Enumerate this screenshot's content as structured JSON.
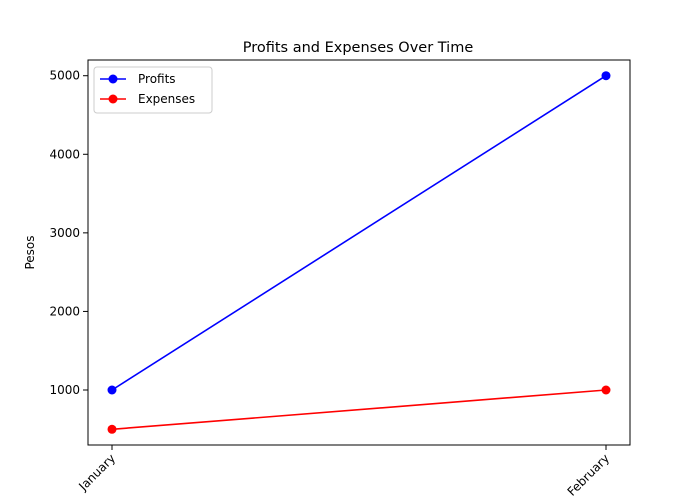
{
  "chart_data": {
    "type": "line",
    "title": "Profits and Expenses Over Time",
    "xlabel": "",
    "ylabel": "Pesos",
    "categories": [
      "January",
      "February"
    ],
    "series": [
      {
        "name": "Profits",
        "values": [
          1000,
          5000
        ],
        "color": "#0000ff",
        "marker": "circle"
      },
      {
        "name": "Expenses",
        "values": [
          500,
          1000
        ],
        "color": "#ff0000",
        "marker": "circle"
      }
    ],
    "ylim": [
      300,
      5200
    ],
    "yticks": [
      1000,
      2000,
      3000,
      4000,
      5000
    ],
    "xtick_rotation_deg": 45,
    "grid": false,
    "legend": {
      "position": "upper-left",
      "entries": [
        "Profits",
        "Expenses"
      ]
    }
  }
}
